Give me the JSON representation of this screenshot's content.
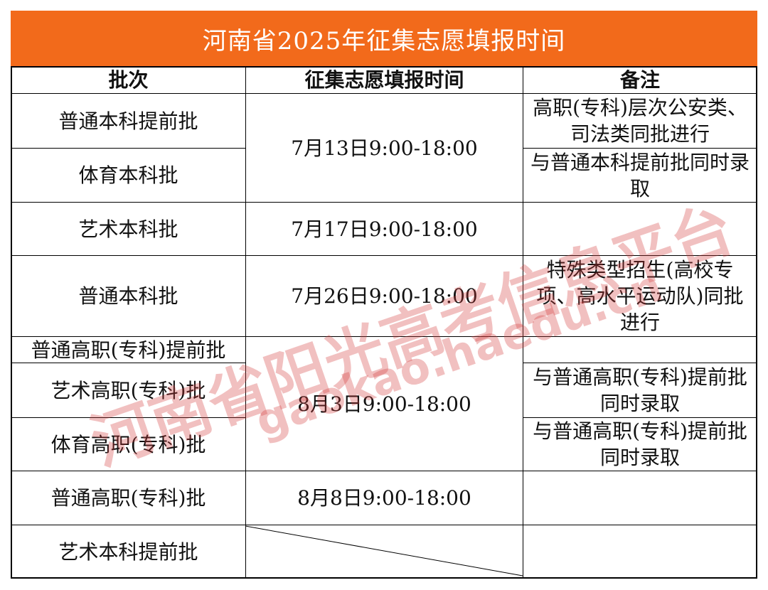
{
  "title": "河南省2025年征集志愿填报时间",
  "headers": [
    "批次",
    "征集志愿填报时间",
    "备注"
  ],
  "batches": [
    "普通本科提前批",
    "体育本科批",
    "艺术本科批",
    "普通本科批",
    "普通高职(专科)提前批",
    "艺术高职(专科)批",
    "体育高职(专科)批",
    "普通高职(专科)批",
    "艺术本科提前批"
  ],
  "times": [
    "7月13日9:00-18:00",
    "7月17日9:00-18:00",
    "7月26日9:00-18:00",
    "8月3日9:00-18:00",
    "8月8日9:00-18:00",
    ""
  ],
  "notes": [
    "高职(专科)层次公安类、司法类同批进行",
    "与普通本科提前批同时录取",
    "",
    "特殊类型招生(高校专项、高水平运动队)同批进行",
    "",
    "与普通高职(专科)提前批同时录取",
    "与普通高职(专科)提前批同时录取",
    "",
    ""
  ],
  "watermark": {
    "name": "河南省阳光高考信息平台",
    "url": "gaokao.haedu.cn"
  },
  "colors": {
    "title_bg": "#f26a1b",
    "watermark": "#d23c3c"
  }
}
